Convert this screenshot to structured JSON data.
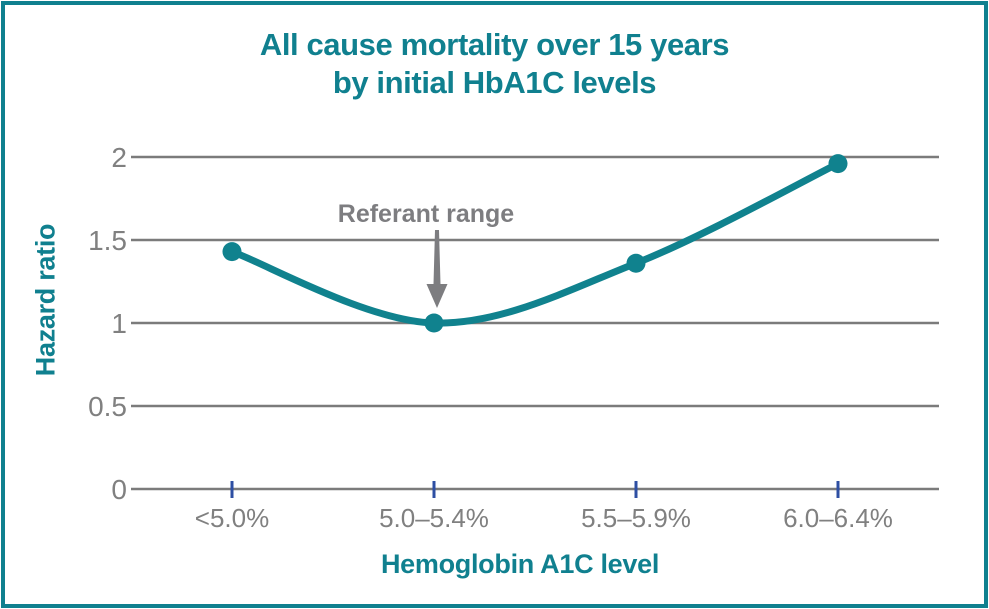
{
  "title": {
    "line1": "All cause mortality over 15 years",
    "line2": "by initial HbA1C levels"
  },
  "chart_data": {
    "type": "line",
    "title": "All cause mortality over 15 years by initial HbA1C levels",
    "categories": [
      "<5.0%",
      "5.0–5.4%",
      "5.5–5.9%",
      "6.0–6.4%"
    ],
    "series": [
      {
        "name": "Hazard ratio",
        "values": [
          1.43,
          1.0,
          1.36,
          1.96
        ]
      }
    ],
    "xlabel": "Hemoglobin A1C level",
    "ylabel": "Hazard ratio",
    "ylim": [
      0,
      2
    ],
    "yticks": [
      0,
      0.5,
      1,
      1.5,
      2
    ],
    "grid": true,
    "legend": false,
    "smooth": true,
    "annotation": {
      "text": "Referant range",
      "target_category_index": 1,
      "target_value": 1.0
    }
  },
  "colors": {
    "teal": "#10808f",
    "curve": "#10828e",
    "grid": "#7b7b7b",
    "tick_text": "#808080",
    "tick_mark": "#2e4fa3",
    "annotation": "#7d7d80"
  }
}
